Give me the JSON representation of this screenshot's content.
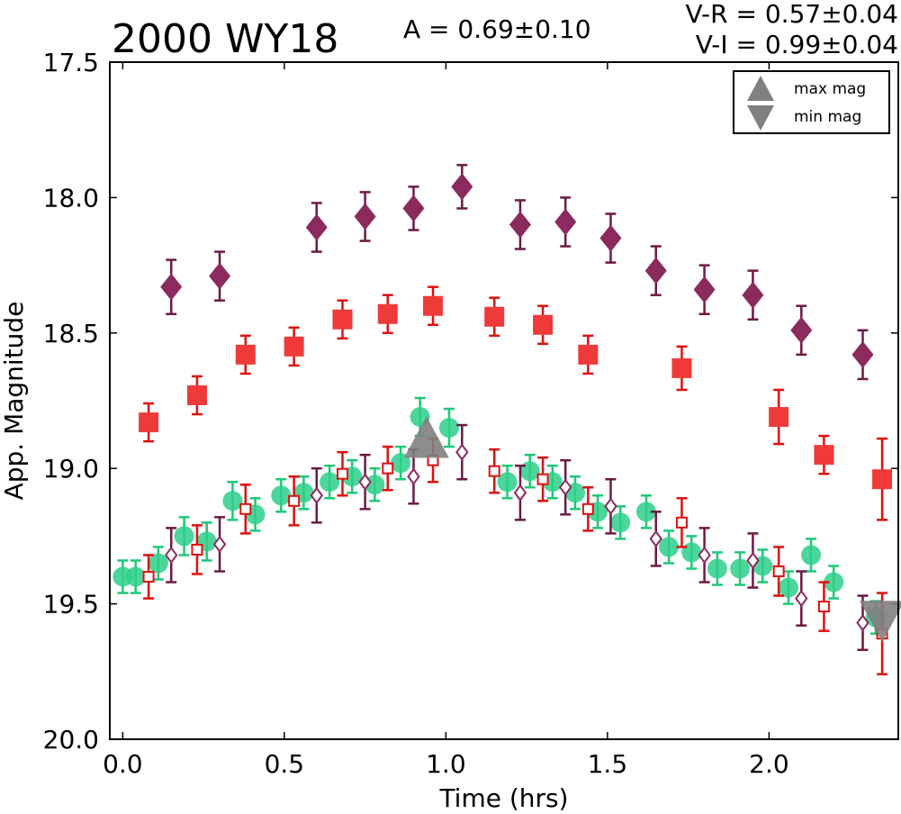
{
  "chart_data": {
    "type": "scatter",
    "title": "2000 WY18",
    "annotations": {
      "amplitude": "A  = 0.69±0.10",
      "vr": "V-R = 0.57±0.04",
      "vi": "V-I  = 0.99±0.04"
    },
    "xlabel": "Time (hrs)",
    "ylabel": "App. Magnitude",
    "xlim": [
      -0.04,
      2.4
    ],
    "ylim": [
      20.0,
      17.5
    ],
    "y_inverted": true,
    "xticks": [
      0.0,
      0.5,
      1.0,
      1.5,
      2.0
    ],
    "xtick_labels": [
      "0.0",
      "0.5",
      "1.0",
      "1.5",
      "2.0"
    ],
    "yticks": [
      17.5,
      18.0,
      18.5,
      19.0,
      19.5,
      20.0
    ],
    "ytick_labels": [
      "17.5",
      "18.0",
      "18.5",
      "19.0",
      "19.5",
      "20.0"
    ],
    "legend": {
      "placement": "top-right",
      "entries": [
        {
          "label": "max mag",
          "marker": "triangle-up",
          "color": "#808080"
        },
        {
          "label": "min mag",
          "marker": "triangle-down",
          "color": "#808080"
        }
      ]
    },
    "colors": {
      "purple": "#8b2a5f",
      "purple_dark": "#6b1a45",
      "red": "#f03a3a",
      "red_dark": "#e01010",
      "green": "#2ecf8a",
      "green_err": "#1ec878",
      "gray": "#808080"
    },
    "series": [
      {
        "marker": "diamond-filled",
        "color": "#8b2a5f",
        "points": [
          {
            "x": 0.15,
            "y": 18.33,
            "err": 0.1
          },
          {
            "x": 0.3,
            "y": 18.29,
            "err": 0.09
          },
          {
            "x": 0.6,
            "y": 18.11,
            "err": 0.09
          },
          {
            "x": 0.75,
            "y": 18.07,
            "err": 0.09
          },
          {
            "x": 0.9,
            "y": 18.04,
            "err": 0.08
          },
          {
            "x": 1.05,
            "y": 17.96,
            "err": 0.08
          },
          {
            "x": 1.23,
            "y": 18.1,
            "err": 0.09
          },
          {
            "x": 1.37,
            "y": 18.09,
            "err": 0.09
          },
          {
            "x": 1.51,
            "y": 18.15,
            "err": 0.09
          },
          {
            "x": 1.65,
            "y": 18.27,
            "err": 0.09
          },
          {
            "x": 1.8,
            "y": 18.34,
            "err": 0.09
          },
          {
            "x": 1.95,
            "y": 18.36,
            "err": 0.09
          },
          {
            "x": 2.1,
            "y": 18.49,
            "err": 0.09
          },
          {
            "x": 2.29,
            "y": 18.58,
            "err": 0.09
          }
        ]
      },
      {
        "marker": "square-filled",
        "color": "#f03a3a",
        "points": [
          {
            "x": 0.08,
            "y": 18.83,
            "err": 0.07
          },
          {
            "x": 0.23,
            "y": 18.73,
            "err": 0.07
          },
          {
            "x": 0.38,
            "y": 18.58,
            "err": 0.07
          },
          {
            "x": 0.53,
            "y": 18.55,
            "err": 0.07
          },
          {
            "x": 0.68,
            "y": 18.45,
            "err": 0.07
          },
          {
            "x": 0.82,
            "y": 18.43,
            "err": 0.07
          },
          {
            "x": 0.96,
            "y": 18.4,
            "err": 0.07
          },
          {
            "x": 1.15,
            "y": 18.44,
            "err": 0.07
          },
          {
            "x": 1.3,
            "y": 18.47,
            "err": 0.07
          },
          {
            "x": 1.44,
            "y": 18.58,
            "err": 0.07
          },
          {
            "x": 1.73,
            "y": 18.63,
            "err": 0.08
          },
          {
            "x": 2.03,
            "y": 18.81,
            "err": 0.1
          },
          {
            "x": 2.17,
            "y": 18.95,
            "err": 0.07
          },
          {
            "x": 2.35,
            "y": 19.04,
            "err": 0.15
          }
        ]
      },
      {
        "marker": "circle-filled",
        "color": "#2ecf8a",
        "points": [
          {
            "x": 0.0,
            "y": 19.4,
            "err": 0.06
          },
          {
            "x": 0.04,
            "y": 19.4,
            "err": 0.06
          },
          {
            "x": 0.11,
            "y": 19.35,
            "err": 0.06
          },
          {
            "x": 0.19,
            "y": 19.25,
            "err": 0.07
          },
          {
            "x": 0.26,
            "y": 19.27,
            "err": 0.07
          },
          {
            "x": 0.34,
            "y": 19.12,
            "err": 0.07
          },
          {
            "x": 0.41,
            "y": 19.17,
            "err": 0.06
          },
          {
            "x": 0.49,
            "y": 19.1,
            "err": 0.06
          },
          {
            "x": 0.56,
            "y": 19.09,
            "err": 0.06
          },
          {
            "x": 0.64,
            "y": 19.05,
            "err": 0.06
          },
          {
            "x": 0.71,
            "y": 19.03,
            "err": 0.06
          },
          {
            "x": 0.78,
            "y": 19.06,
            "err": 0.06
          },
          {
            "x": 0.86,
            "y": 18.98,
            "err": 0.06
          },
          {
            "x": 0.92,
            "y": 18.81,
            "err": 0.07
          },
          {
            "x": 1.01,
            "y": 18.85,
            "err": 0.07
          },
          {
            "x": 1.19,
            "y": 19.05,
            "err": 0.06
          },
          {
            "x": 1.26,
            "y": 19.01,
            "err": 0.06
          },
          {
            "x": 1.33,
            "y": 19.05,
            "err": 0.06
          },
          {
            "x": 1.4,
            "y": 19.09,
            "err": 0.06
          },
          {
            "x": 1.47,
            "y": 19.16,
            "err": 0.06
          },
          {
            "x": 1.54,
            "y": 19.2,
            "err": 0.06
          },
          {
            "x": 1.62,
            "y": 19.16,
            "err": 0.06
          },
          {
            "x": 1.69,
            "y": 19.29,
            "err": 0.06
          },
          {
            "x": 1.76,
            "y": 19.31,
            "err": 0.06
          },
          {
            "x": 1.84,
            "y": 19.37,
            "err": 0.06
          },
          {
            "x": 1.91,
            "y": 19.37,
            "err": 0.06
          },
          {
            "x": 1.98,
            "y": 19.36,
            "err": 0.06
          },
          {
            "x": 2.06,
            "y": 19.44,
            "err": 0.06
          },
          {
            "x": 2.13,
            "y": 19.32,
            "err": 0.06
          },
          {
            "x": 2.2,
            "y": 19.42,
            "err": 0.06
          },
          {
            "x": 2.33,
            "y": 19.55,
            "err": 0.06
          }
        ]
      },
      {
        "marker": "square-open",
        "color": "#e01010",
        "points": [
          {
            "x": 0.08,
            "y": 19.4,
            "err": 0.08
          },
          {
            "x": 0.23,
            "y": 19.3,
            "err": 0.09
          },
          {
            "x": 0.38,
            "y": 19.15,
            "err": 0.09
          },
          {
            "x": 0.53,
            "y": 19.12,
            "err": 0.09
          },
          {
            "x": 0.68,
            "y": 19.02,
            "err": 0.08
          },
          {
            "x": 0.82,
            "y": 19.0,
            "err": 0.08
          },
          {
            "x": 0.96,
            "y": 18.97,
            "err": 0.08
          },
          {
            "x": 1.15,
            "y": 19.01,
            "err": 0.08
          },
          {
            "x": 1.3,
            "y": 19.04,
            "err": 0.08
          },
          {
            "x": 1.44,
            "y": 19.15,
            "err": 0.08
          },
          {
            "x": 1.73,
            "y": 19.2,
            "err": 0.09
          },
          {
            "x": 2.03,
            "y": 19.38,
            "err": 0.09
          },
          {
            "x": 2.17,
            "y": 19.51,
            "err": 0.09
          },
          {
            "x": 2.35,
            "y": 19.61,
            "err": 0.15
          }
        ]
      },
      {
        "marker": "diamond-open",
        "color": "#8b2a5f",
        "points": [
          {
            "x": 0.15,
            "y": 19.32,
            "err": 0.1
          },
          {
            "x": 0.3,
            "y": 19.28,
            "err": 0.1
          },
          {
            "x": 0.6,
            "y": 19.1,
            "err": 0.1
          },
          {
            "x": 0.75,
            "y": 19.05,
            "err": 0.1
          },
          {
            "x": 0.9,
            "y": 19.03,
            "err": 0.1
          },
          {
            "x": 1.05,
            "y": 18.94,
            "err": 0.1
          },
          {
            "x": 1.23,
            "y": 19.09,
            "err": 0.1
          },
          {
            "x": 1.37,
            "y": 19.07,
            "err": 0.1
          },
          {
            "x": 1.51,
            "y": 19.14,
            "err": 0.1
          },
          {
            "x": 1.65,
            "y": 19.26,
            "err": 0.1
          },
          {
            "x": 1.8,
            "y": 19.32,
            "err": 0.1
          },
          {
            "x": 1.95,
            "y": 19.34,
            "err": 0.1
          },
          {
            "x": 2.1,
            "y": 19.48,
            "err": 0.1
          },
          {
            "x": 2.29,
            "y": 19.57,
            "err": 0.1
          }
        ]
      }
    ],
    "extrema": [
      {
        "label": "max mag",
        "marker": "triangle-up",
        "x": 0.94,
        "y": 18.9
      },
      {
        "label": "min mag",
        "marker": "triangle-down",
        "x": 2.35,
        "y": 19.55
      }
    ]
  }
}
